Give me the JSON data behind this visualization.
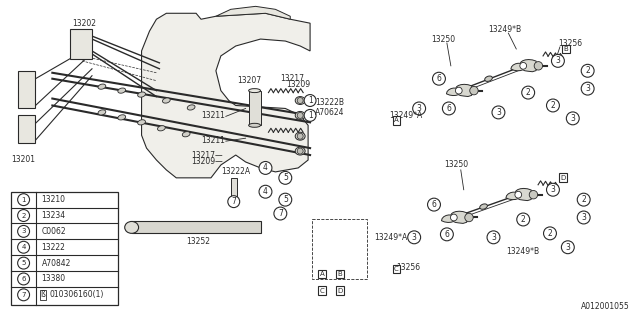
{
  "background_color": "#f5f5f0",
  "diagram_color": "#404040",
  "fig_width": 6.4,
  "fig_height": 3.2,
  "dpi": 100,
  "legend_items": [
    [
      "1",
      "13210"
    ],
    [
      "2",
      "13234"
    ],
    [
      "3",
      "C0062"
    ],
    [
      "4",
      "13222"
    ],
    [
      "5",
      "A70842"
    ],
    [
      "6",
      "13380"
    ],
    [
      "7",
      "ß010306160(1)"
    ]
  ],
  "footer_label": "A012001055"
}
